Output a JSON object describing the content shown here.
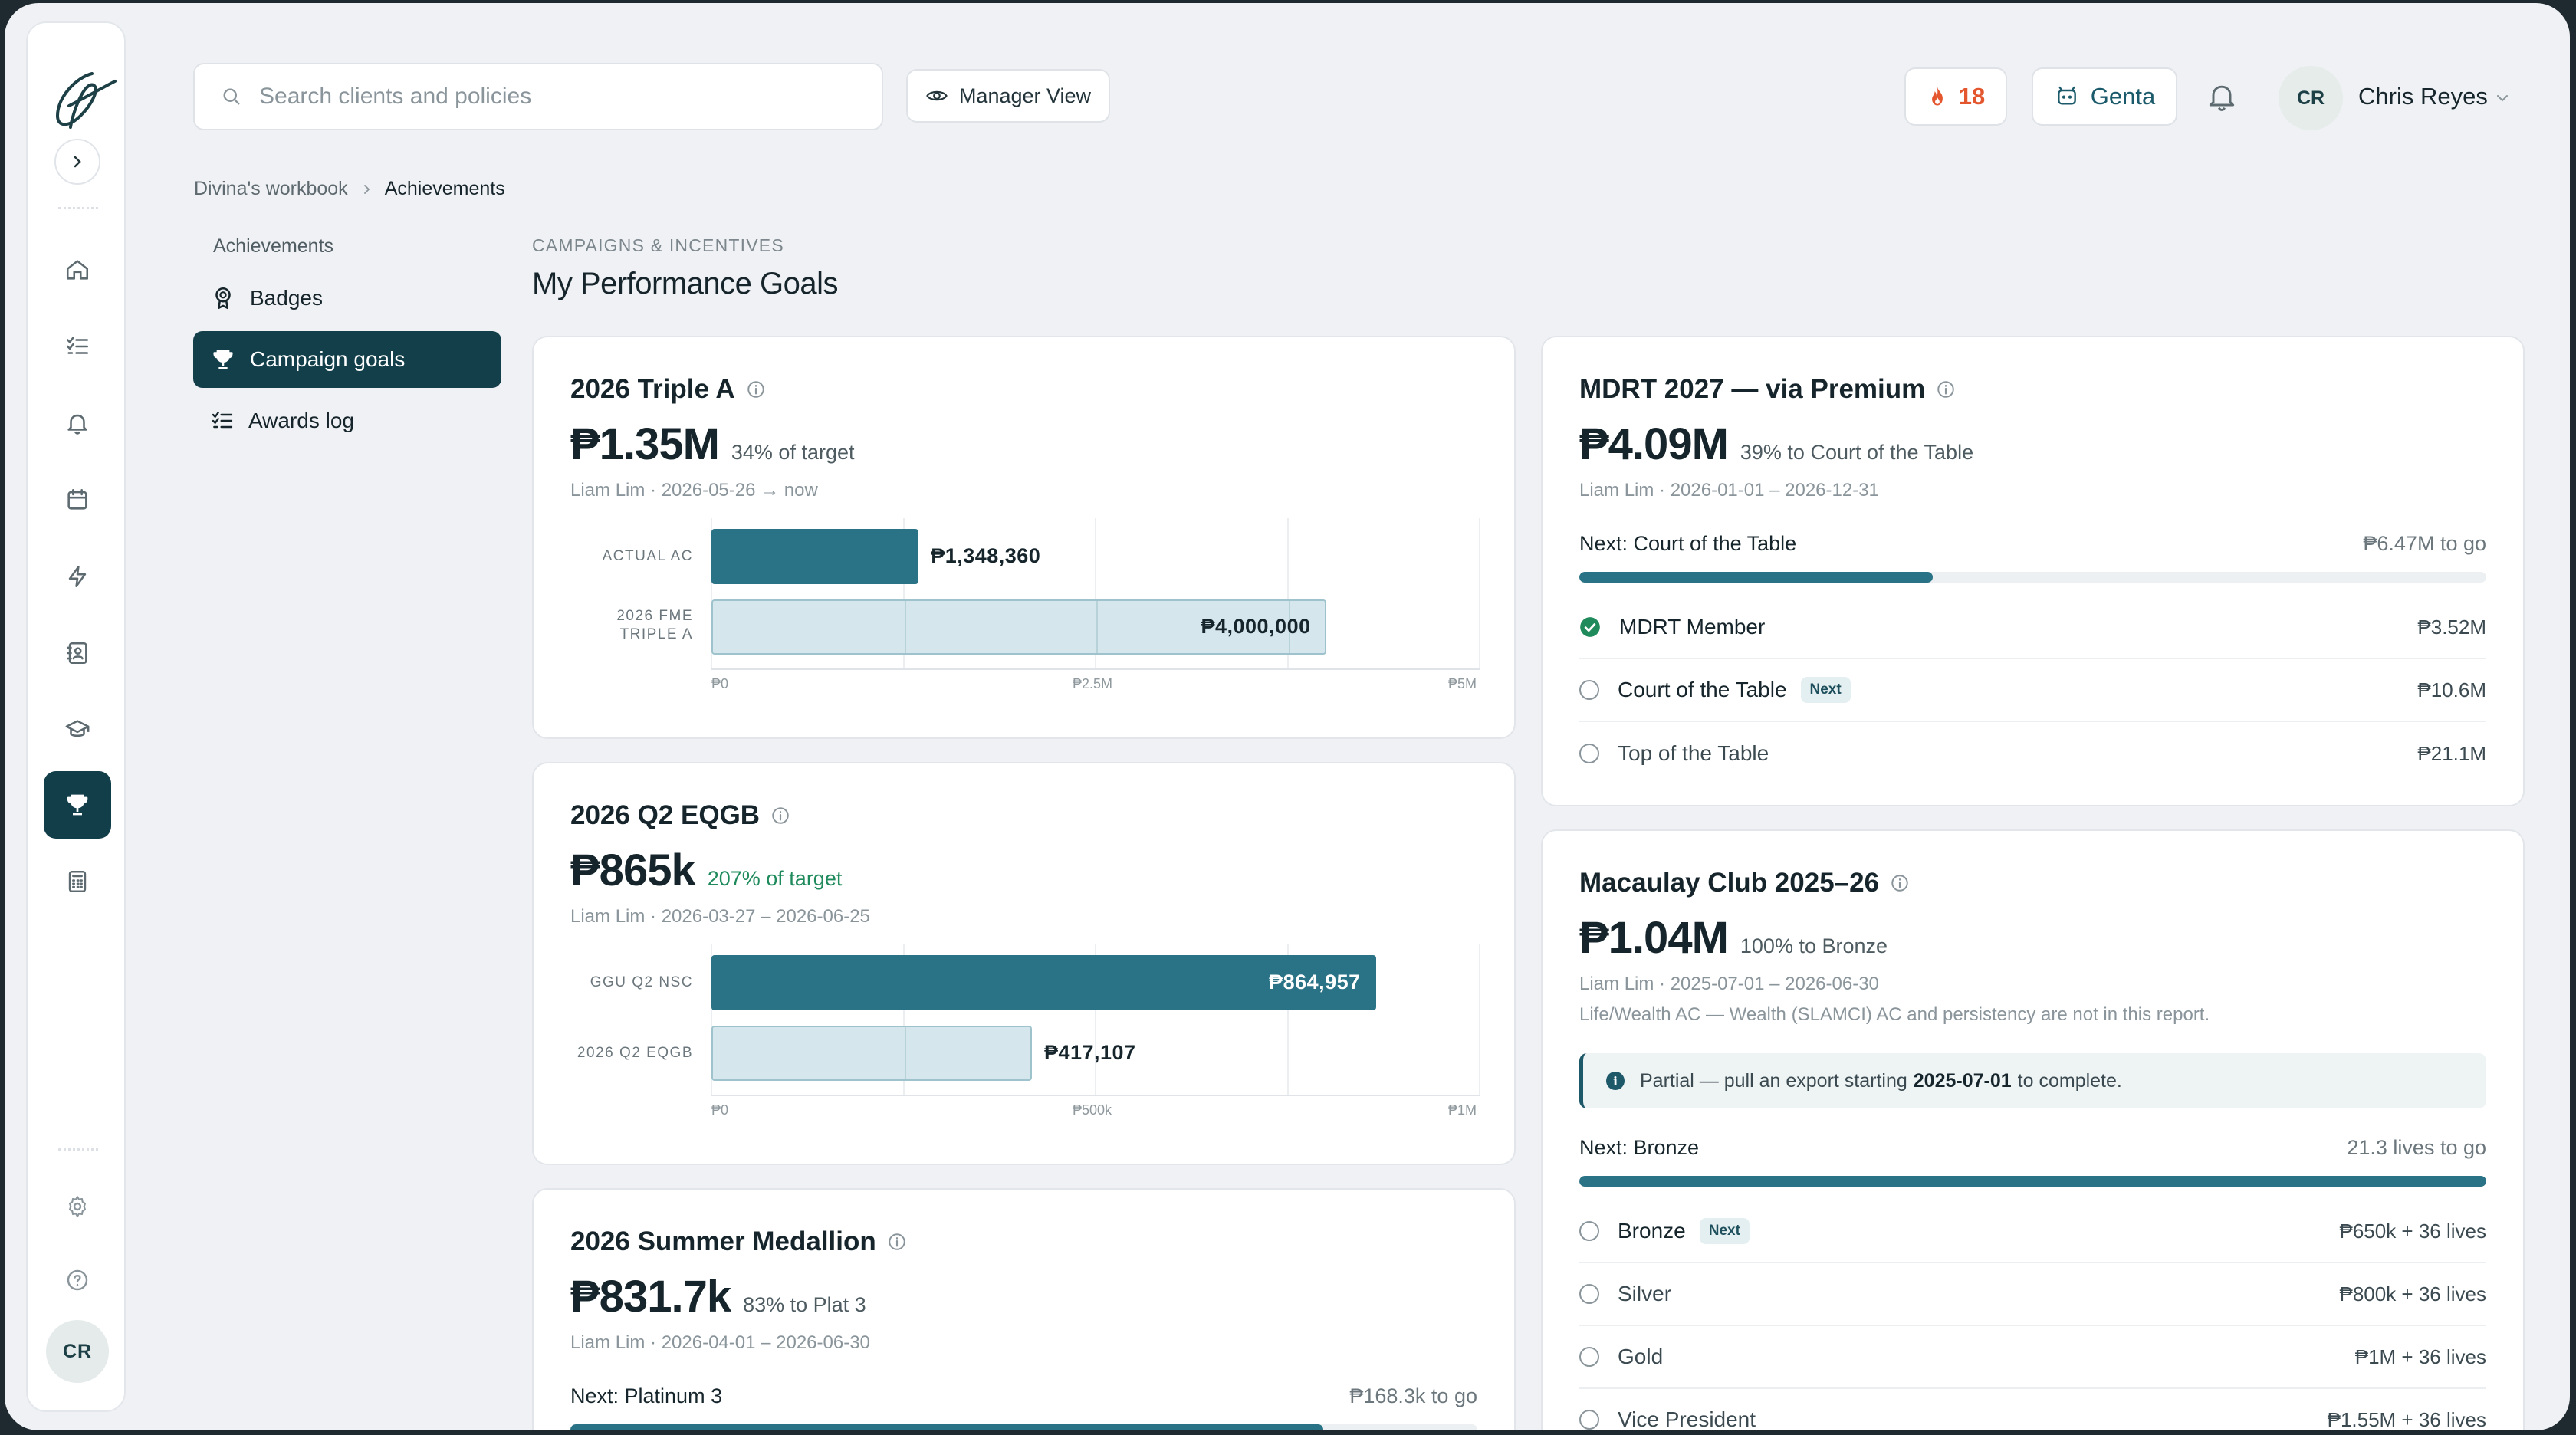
{
  "search": {
    "placeholder": "Search clients and policies"
  },
  "toolbar": {
    "manager_view": "Manager View",
    "streak_count": "18",
    "genta_label": "Genta"
  },
  "user": {
    "initials": "CR",
    "name": "Chris Reyes"
  },
  "rail": {
    "avatar_initials": "CR"
  },
  "breadcrumb": {
    "parent": "Divina's workbook",
    "current": "Achievements"
  },
  "subnav": {
    "heading": "Achievements",
    "items": [
      {
        "label": "Badges"
      },
      {
        "label": "Campaign goals"
      },
      {
        "label": "Awards log"
      }
    ]
  },
  "page": {
    "eyebrow": "CAMPAIGNS & INCENTIVES",
    "title": "My Performance Goals"
  },
  "cards": {
    "triple_a": {
      "title": "2026 Triple A",
      "amount": "₱1.35M",
      "pct": "34% of target",
      "meta": "Liam Lim · 2026-05-26 → now",
      "chart": {
        "rows": [
          {
            "label": "ACTUAL AC",
            "value": 1348360,
            "display": "₱1,348,360",
            "style": "solid"
          },
          {
            "label": "2026 FME TRIPLE A",
            "value": 4000000,
            "display": "₱4,000,000",
            "style": "light"
          }
        ],
        "xmax": 5000000,
        "ticks": [
          "₱0",
          "₱2.5M",
          "₱5M"
        ]
      }
    },
    "eqgb": {
      "title": "2026 Q2 EQGB",
      "amount": "₱865k",
      "pct": "207% of target",
      "meta": "Liam Lim · 2026-03-27 – 2026-06-25",
      "chart": {
        "rows": [
          {
            "label": "GGU Q2 NSC",
            "value": 864957,
            "display": "₱864,957",
            "style": "solid"
          },
          {
            "label": "2026 Q2 EQGB",
            "value": 417107,
            "display": "₱417,107",
            "style": "light"
          }
        ],
        "xmax": 1000000,
        "ticks": [
          "₱0",
          "₱500k",
          "₱1M"
        ]
      }
    },
    "summer": {
      "title": "2026 Summer Medallion",
      "amount": "₱831.7k",
      "pct": "83% to Plat 3",
      "meta": "Liam Lim · 2026-04-01 – 2026-06-30",
      "next_label": "Next: Platinum 3",
      "next_togo": "₱168.3k to go",
      "progress": 0.83
    },
    "mdrt": {
      "title": "MDRT 2027 — via Premium",
      "amount": "₱4.09M",
      "pct": "39% to Court of the Table",
      "meta": "Liam Lim · 2026-01-01 – 2026-12-31",
      "next_label": "Next: Court of the Table",
      "next_togo": "₱6.47M to go",
      "progress": 0.39,
      "tiers": [
        {
          "name": "MDRT Member",
          "value": "₱3.52M",
          "done": true
        },
        {
          "name": "Court of the Table",
          "value": "₱10.6M",
          "next": "Next"
        },
        {
          "name": "Top of the Table",
          "value": "₱21.1M"
        }
      ]
    },
    "macaulay": {
      "title": "Macaulay Club 2025–26",
      "amount": "₱1.04M",
      "pct": "100% to Bronze",
      "meta": "Liam Lim · 2025-07-01 – 2026-06-30",
      "note": "Life/Wealth AC — Wealth (SLAMCI) AC and persistency are not in this report.",
      "callout_pre": "Partial — pull an export starting",
      "callout_date": "2025-07-01",
      "callout_post": "to complete.",
      "next_label": "Next: Bronze",
      "next_togo": "21.3 lives to go",
      "progress": 1.0,
      "tiers": [
        {
          "name": "Bronze",
          "value": "₱650k + 36 lives",
          "next": "Next"
        },
        {
          "name": "Silver",
          "value": "₱800k + 36 lives"
        },
        {
          "name": "Gold",
          "value": "₱1M + 36 lives"
        },
        {
          "name": "Vice President",
          "value": "₱1.55M + 36 lives"
        }
      ]
    }
  },
  "colors": {
    "accent": "#2a7285",
    "nav_active": "#133f4a",
    "streak": "#e4572e",
    "success": "#1f8a5b"
  }
}
